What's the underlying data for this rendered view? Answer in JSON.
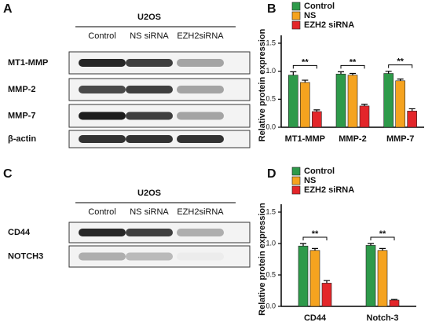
{
  "chart_data": [
    {
      "panel": "B",
      "type": "bar",
      "ylabel": "Relative protein expression",
      "categories": [
        "MT1-MMP",
        "MMP-2",
        "MMP-7"
      ],
      "series": [
        {
          "name": "Control",
          "color": "#2e9a4a",
          "values": [
            0.93,
            0.95,
            0.96
          ],
          "errors": [
            0.06,
            0.04,
            0.04
          ]
        },
        {
          "name": "NS",
          "color": "#f5a31f",
          "values": [
            0.8,
            0.93,
            0.83
          ],
          "errors": [
            0.04,
            0.03,
            0.03
          ]
        },
        {
          "name": "EZH2 siRNA",
          "color": "#e3262a",
          "values": [
            0.28,
            0.38,
            0.29
          ],
          "errors": [
            0.03,
            0.03,
            0.04
          ]
        }
      ],
      "ylim": [
        0,
        1.5
      ],
      "yticks": [
        {
          "value": 0,
          "label": "0.0"
        },
        {
          "value": 0.5,
          "label": "0.5"
        },
        {
          "value": 1,
          "label": "1.0"
        },
        {
          "value": 1.5,
          "label": "1.5"
        }
      ],
      "legend": "top-left",
      "significance": [
        "**",
        "**",
        "**"
      ]
    },
    {
      "panel": "D",
      "type": "bar",
      "ylabel": "Relative protein expression",
      "categories": [
        "CD44",
        "Notch-3"
      ],
      "series": [
        {
          "name": "Control",
          "color": "#2e9a4a",
          "values": [
            0.96,
            0.97
          ],
          "errors": [
            0.04,
            0.03
          ]
        },
        {
          "name": "NS",
          "color": "#f5a31f",
          "values": [
            0.89,
            0.89
          ],
          "errors": [
            0.03,
            0.03
          ]
        },
        {
          "name": "EZH2 siRNA",
          "color": "#e3262a",
          "values": [
            0.37,
            0.1
          ],
          "errors": [
            0.04,
            0.01
          ]
        }
      ],
      "ylim": [
        0,
        1.5
      ],
      "yticks": [
        {
          "value": 0,
          "label": "0.0"
        },
        {
          "value": 0.5,
          "label": "0.5"
        },
        {
          "value": 1,
          "label": "1.0"
        },
        {
          "value": 1.5,
          "label": "1.5"
        }
      ],
      "legend": "top-left",
      "significance": [
        "**",
        "**"
      ]
    }
  ],
  "blots": [
    {
      "panel": "A",
      "cell_line": "U2OS",
      "lanes": [
        "Control",
        "NS siRNA",
        "EZH2siRNA"
      ],
      "rows": [
        "MT1-MMP",
        "MMP-2",
        "MMP-7",
        "β-actin"
      ]
    },
    {
      "panel": "C",
      "cell_line": "U2OS",
      "lanes": [
        "Control",
        "NS siRNA",
        "EZH2siRNA"
      ],
      "rows": [
        "CD44",
        "NOTCH3"
      ]
    }
  ]
}
